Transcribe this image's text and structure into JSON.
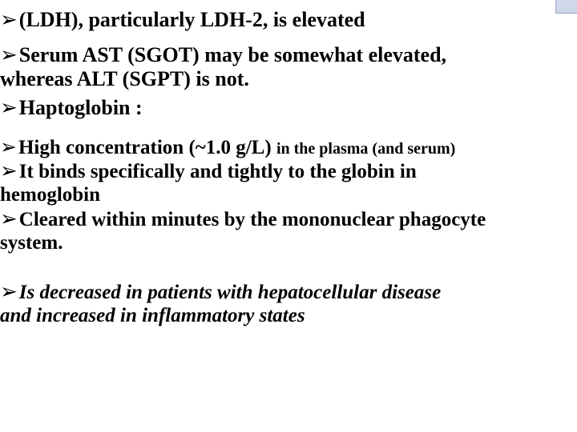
{
  "colors": {
    "background": "#ffffff",
    "text": "#000000",
    "bullet": "#000000",
    "corner_fill": "#d0d7e8",
    "corner_border": "#9aa7c7"
  },
  "typography": {
    "family": "Times New Roman",
    "body_size_pt": 26,
    "small_size_pt": 20,
    "weight_bold": 700,
    "weight_normal": 400
  },
  "bullets": {
    "glyph": "➢"
  },
  "content": {
    "l1": "(LDH), particularly LDH-2, is elevated",
    "l2a": "Serum AST (SGOT) may be somewhat elevated,",
    "l2b": "whereas ALT (SGPT) is not.",
    "l3": "Haptoglobin :",
    "l4a": "High  concentration (~1.0 g/L) ",
    "l4b": "in the plasma (and serum)",
    "l5a": "It binds specifically and tightly to the globin in",
    "l5b": "hemoglobin",
    "l6a": "Cleared  within minutes by the mononuclear phagocyte",
    "l6b": "system.",
    "l7a": "Is  decreased in patients with hepatocellular disease",
    "l7b": "and increased in inflammatory states"
  }
}
